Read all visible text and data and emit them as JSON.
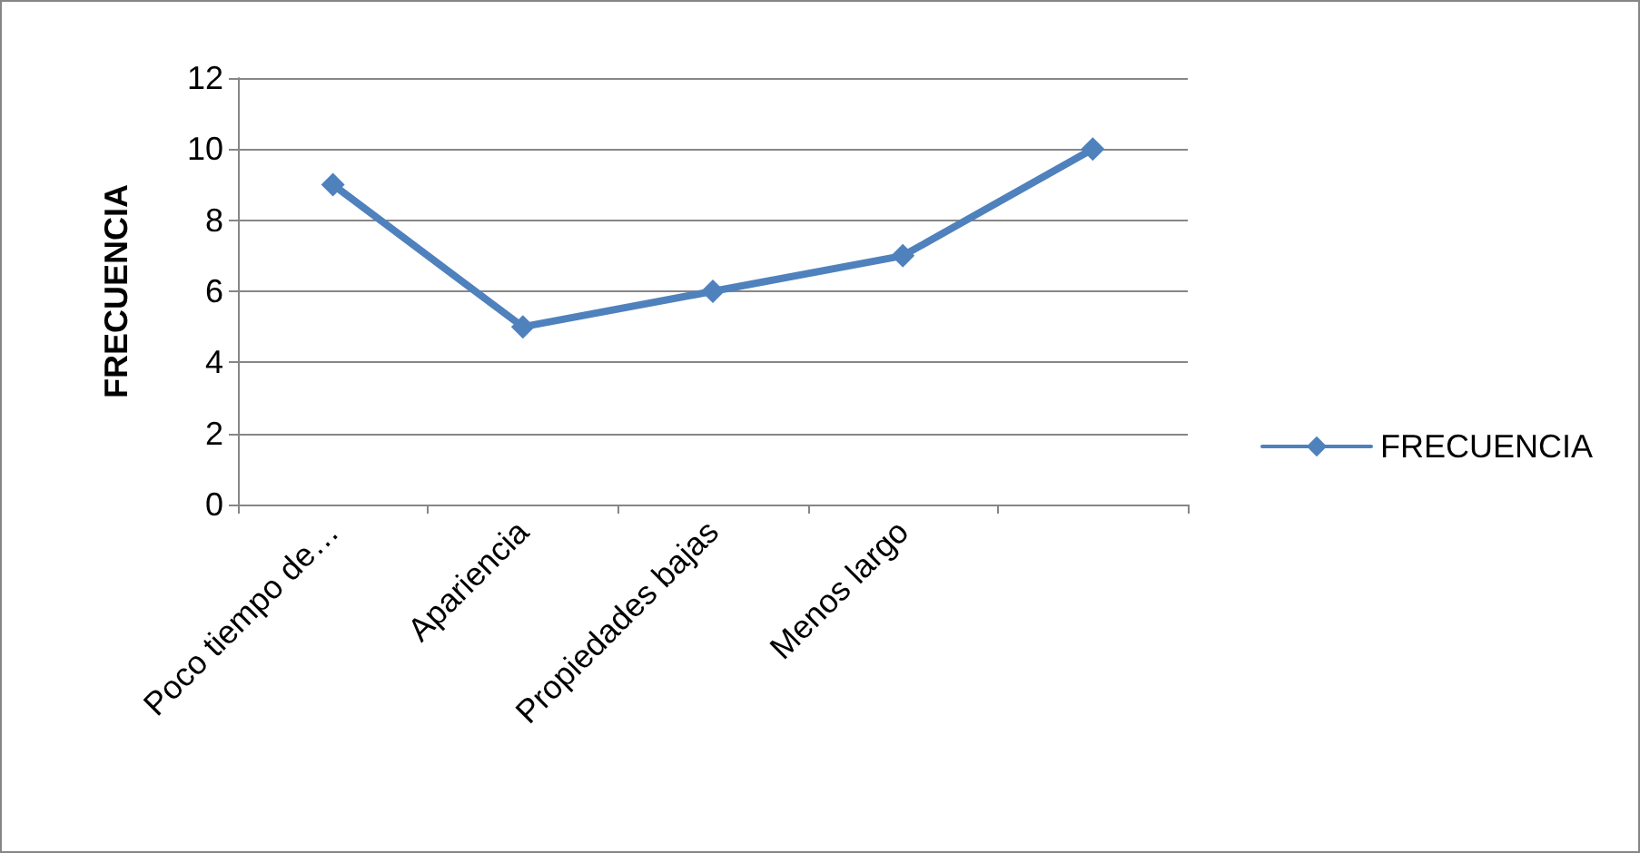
{
  "chart_data": {
    "type": "line",
    "ylabel": "FRECUENCIA",
    "categories": [
      "Poco tiempo de…",
      "Apariencia",
      "Propiedades bajas",
      "Menos largo",
      null
    ],
    "series": [
      {
        "name": "FRECUENCIA",
        "color": "#4f81bd",
        "values": [
          9,
          5,
          6,
          7,
          10
        ]
      }
    ],
    "ylim": [
      0,
      12
    ],
    "yticks": [
      0,
      2,
      4,
      6,
      8,
      10,
      12
    ],
    "grid": "y",
    "legend": "right",
    "marker": "diamond",
    "line_style": "solid"
  }
}
